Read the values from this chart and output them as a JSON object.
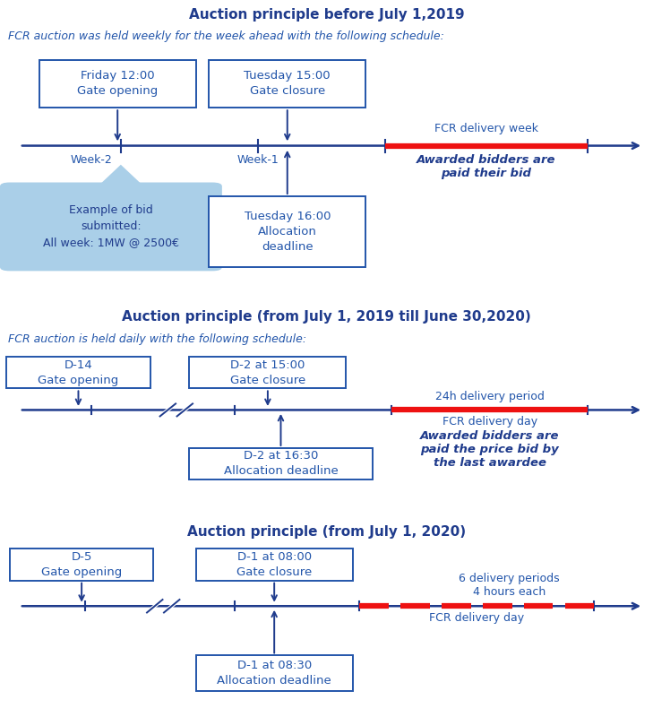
{
  "header_bg": "#BEE4F0",
  "header_text_color": "#1F3B8C",
  "box_edge_color": "#2255AA",
  "arrow_color": "#1F3B8C",
  "timeline_color": "#1F3B8C",
  "red_segment_color": "#EE1111",
  "label_color": "#2255AA",
  "bold_label_color": "#1F3B8C",
  "light_blue_box": "#AACFE8",
  "section1": {
    "header": "Auction principle before July 1,2019",
    "subtitle": "FCR auction was held weekly for the week ahead with the following schedule:",
    "box1_text": "Friday 12:00\nGate opening",
    "box2_text": "Tuesday 15:00\nGate closure",
    "box3_text": "Tuesday 16:00\nAllocation\ndeadline",
    "label1": "Week-2",
    "label2": "Week-1",
    "label3": "FCR delivery week",
    "label4": "Awarded bidders are\npaid their bid",
    "example_text": "Example of bid\nsubmitted:\nAll week: 1MW @ 2500€"
  },
  "section2": {
    "header": "Auction principle (from July 1, 2019 till June 30,2020)",
    "subtitle": "FCR auction is held daily with the following schedule:",
    "box1_text": "D-14\nGate opening",
    "box2_text": "D-2 at 15:00\nGate closure",
    "box3_text": "D-2 at 16:30\nAllocation deadline",
    "label1": "24h delivery period",
    "label2": "FCR delivery day",
    "label3": "Awarded bidders are\npaid the price bid by\nthe last awardee"
  },
  "section3": {
    "header": "Auction principle (from July 1, 2020)",
    "box1_text": "D-5\nGate opening",
    "box2_text": "D-1 at 08:00\nGate closure",
    "box3_text": "D-1 at 08:30\nAllocation deadline",
    "label1": "6 delivery periods\n4 hours each",
    "label2": "FCR delivery day"
  }
}
